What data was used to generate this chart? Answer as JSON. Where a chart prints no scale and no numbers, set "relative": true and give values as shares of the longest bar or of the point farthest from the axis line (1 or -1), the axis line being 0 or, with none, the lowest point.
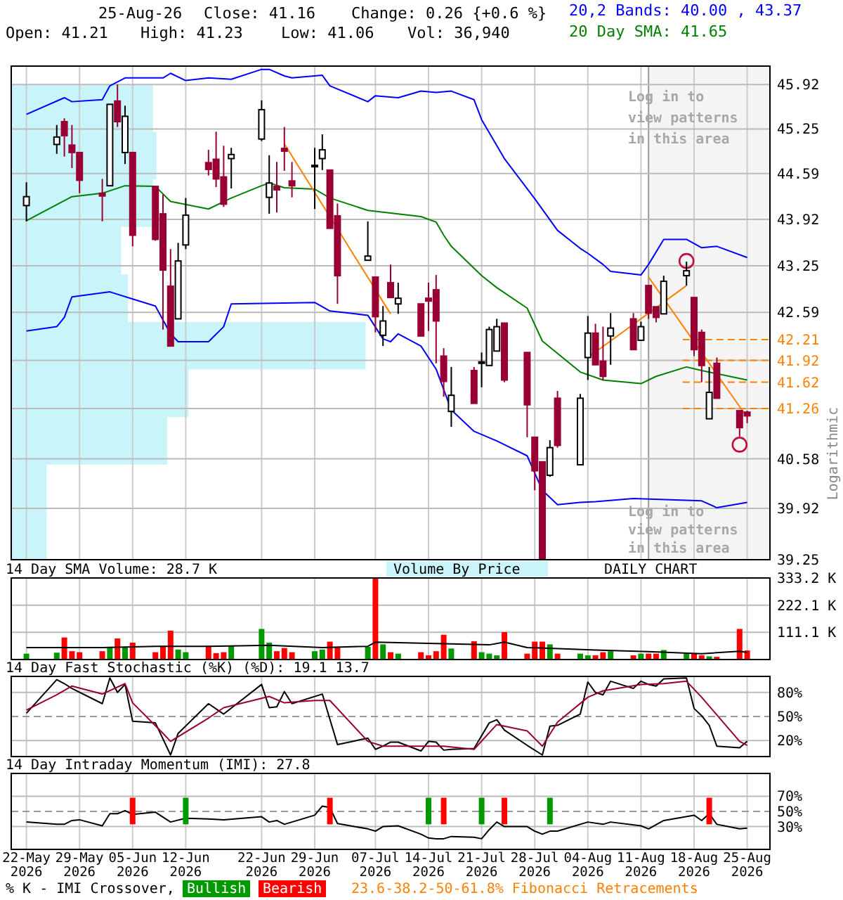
{
  "chart_data": [
    {
      "type": "candlestick",
      "log": true,
      "grid": true,
      "tick_labels": "y",
      "ylabel": "Logarithmic",
      "xlim": [
        "2026-05-20",
        "2026-08-28"
      ],
      "x": [
        "2026-05-22",
        "2026-05-26",
        "2026-05-27",
        "2026-05-28",
        "2026-05-29",
        "2026-06-01",
        "2026-06-02",
        "2026-06-03",
        "2026-06-04",
        "2026-06-05",
        "2026-06-08",
        "2026-06-09",
        "2026-06-10",
        "2026-06-11",
        "2026-06-12",
        "2026-06-15",
        "2026-06-16",
        "2026-06-17",
        "2026-06-18",
        "2026-06-22",
        "2026-06-23",
        "2026-06-24",
        "2026-06-25",
        "2026-06-26",
        "2026-06-29",
        "2026-06-30",
        "2026-07-01",
        "2026-07-02",
        "2026-07-06",
        "2026-07-07",
        "2026-07-08",
        "2026-07-09",
        "2026-07-10",
        "2026-07-13",
        "2026-07-14",
        "2026-07-15",
        "2026-07-16",
        "2026-07-17",
        "2026-07-20",
        "2026-07-21",
        "2026-07-22",
        "2026-07-23",
        "2026-07-24",
        "2026-07-27",
        "2026-07-28",
        "2026-07-29",
        "2026-07-30",
        "2026-07-31",
        "2026-08-03",
        "2026-08-04",
        "2026-08-05",
        "2026-08-06",
        "2026-08-07",
        "2026-08-10",
        "2026-08-11",
        "2026-08-12",
        "2026-08-13",
        "2026-08-14",
        "2026-08-17",
        "2026-08-18",
        "2026-08-19",
        "2026-08-20",
        "2026-08-21",
        "2026-08-24",
        "2026-08-25"
      ],
      "ohlc": [
        [
          44.12,
          44.46,
          43.89,
          44.25
        ],
        [
          45.02,
          45.31,
          44.88,
          45.13
        ],
        [
          45.36,
          45.41,
          44.84,
          45.15
        ],
        [
          45.01,
          45.31,
          44.67,
          44.9
        ],
        [
          44.9,
          44.9,
          44.3,
          44.49
        ],
        [
          44.3,
          44.51,
          43.89,
          44.26
        ],
        [
          44.41,
          45.62,
          44.41,
          45.62
        ],
        [
          45.67,
          45.92,
          45.28,
          45.36
        ],
        [
          44.9,
          45.6,
          44.73,
          45.44
        ],
        [
          44.9,
          44.9,
          43.53,
          43.69
        ],
        [
          44.4,
          44.4,
          43.61,
          43.63
        ],
        [
          44.0,
          44.28,
          42.35,
          43.19
        ],
        [
          42.96,
          43.49,
          42.12,
          42.12
        ],
        [
          42.5,
          43.58,
          42.5,
          43.32
        ],
        [
          43.55,
          44.23,
          43.49,
          43.98
        ],
        [
          44.75,
          44.94,
          44.56,
          44.65
        ],
        [
          44.8,
          45.21,
          44.39,
          44.51
        ],
        [
          44.54,
          45.0,
          44.1,
          44.14
        ],
        [
          44.81,
          44.97,
          44.37,
          44.87
        ],
        [
          45.1,
          45.68,
          45.07,
          45.54
        ],
        [
          44.24,
          44.86,
          44.0,
          44.45
        ],
        [
          44.4,
          44.76,
          44.02,
          44.35
        ],
        [
          44.96,
          45.28,
          44.63,
          44.92
        ],
        [
          44.48,
          44.76,
          44.24,
          44.41
        ],
        [
          44.7,
          44.97,
          44.07,
          44.71
        ],
        [
          44.81,
          45.17,
          44.64,
          44.94
        ],
        [
          44.64,
          44.64,
          43.79,
          43.79
        ],
        [
          43.97,
          44.15,
          42.71,
          43.11
        ],
        [
          43.33,
          43.89,
          43.33,
          43.39
        ],
        [
          43.09,
          43.09,
          42.31,
          42.53
        ],
        [
          42.27,
          42.68,
          42.12,
          42.47
        ],
        [
          43.01,
          43.27,
          42.8,
          42.8
        ],
        [
          42.71,
          43.01,
          42.57,
          42.79
        ],
        [
          42.71,
          42.71,
          42.26,
          42.26
        ],
        [
          42.79,
          43.01,
          42.33,
          42.75
        ],
        [
          42.91,
          43.12,
          41.88,
          42.47
        ],
        [
          41.98,
          42.09,
          41.42,
          41.63
        ],
        [
          41.22,
          41.83,
          41.01,
          41.44
        ],
        [
          41.78,
          41.83,
          41.33,
          41.33
        ],
        [
          41.88,
          42.03,
          41.55,
          41.9
        ],
        [
          41.85,
          42.39,
          41.85,
          42.35
        ],
        [
          42.05,
          42.5,
          42.05,
          42.39
        ],
        [
          42.44,
          42.44,
          41.62,
          41.65
        ],
        [
          42.03,
          42.03,
          40.87,
          41.31
        ],
        [
          40.87,
          40.87,
          40.16,
          40.42
        ],
        [
          40.54,
          40.54,
          39.25,
          39.25
        ],
        [
          40.36,
          40.83,
          40.34,
          40.73
        ],
        [
          41.4,
          41.5,
          40.73,
          40.76
        ],
        [
          40.5,
          41.46,
          40.5,
          41.4
        ],
        [
          41.96,
          42.54,
          41.65,
          42.3
        ],
        [
          42.3,
          42.43,
          41.86,
          41.86
        ],
        [
          41.91,
          42.39,
          41.65,
          41.7
        ],
        [
          42.26,
          42.58,
          41.86,
          42.37
        ],
        [
          42.5,
          42.58,
          42.07,
          42.07
        ],
        [
          42.2,
          42.46,
          42.2,
          42.39
        ],
        [
          42.97,
          42.97,
          42.5,
          42.58
        ],
        [
          42.67,
          42.67,
          42.45,
          42.52
        ],
        [
          42.57,
          43.11,
          42.57,
          43.03
        ],
        [
          43.11,
          43.31,
          42.97,
          43.18
        ],
        [
          42.8,
          42.8,
          41.98,
          42.07
        ],
        [
          42.31,
          42.35,
          41.62,
          41.85
        ],
        [
          41.12,
          41.83,
          41.12,
          41.48
        ],
        [
          41.88,
          41.96,
          41.4,
          41.4
        ],
        [
          41.23,
          41.23,
          40.88,
          41.0
        ],
        [
          41.21,
          41.23,
          41.06,
          41.16
        ]
      ],
      "series": [
        {
          "type": "line",
          "color": "#0000ff",
          "x": [
            "2026-05-22",
            "2026-05-27",
            "2026-05-28",
            "2026-06-01",
            "2026-06-02",
            "2026-06-04",
            "2026-06-09",
            "2026-06-10",
            "2026-06-12",
            "2026-06-15",
            "2026-06-18",
            "2026-06-22",
            "2026-06-23",
            "2026-06-25",
            "2026-06-26",
            "2026-06-30",
            "2026-07-01",
            "2026-07-06",
            "2026-07-07",
            "2026-07-10",
            "2026-07-13",
            "2026-07-15",
            "2026-07-17",
            "2026-07-20",
            "2026-07-21",
            "2026-07-24",
            "2026-07-28",
            "2026-07-31",
            "2026-08-03",
            "2026-08-04",
            "2026-08-06",
            "2026-08-07",
            "2026-08-11",
            "2026-08-12",
            "2026-08-14",
            "2026-08-17",
            "2026-08-19",
            "2026-08-21",
            "2026-08-25"
          ],
          "values": [
            45.47,
            45.72,
            45.66,
            45.69,
            45.9,
            46.02,
            46.02,
            46.09,
            45.98,
            46.02,
            46.0,
            46.15,
            46.15,
            46.05,
            46.02,
            46.06,
            45.9,
            45.66,
            45.75,
            45.72,
            45.82,
            45.8,
            45.82,
            45.69,
            45.39,
            44.81,
            44.22,
            43.76,
            43.5,
            43.43,
            43.27,
            43.17,
            43.12,
            43.27,
            43.63,
            43.63,
            43.51,
            43.53,
            43.37
          ]
        },
        {
          "type": "line",
          "color": "#0000ff",
          "x": [
            "2026-05-22",
            "2026-05-26",
            "2026-05-27",
            "2026-05-28",
            "2026-06-02",
            "2026-06-05",
            "2026-06-08",
            "2026-06-10",
            "2026-06-11",
            "2026-06-15",
            "2026-06-17",
            "2026-06-18",
            "2026-06-29",
            "2026-07-01",
            "2026-07-06",
            "2026-07-08",
            "2026-07-09",
            "2026-07-10",
            "2026-07-13",
            "2026-07-15",
            "2026-07-17",
            "2026-07-20",
            "2026-07-23",
            "2026-07-27",
            "2026-07-29",
            "2026-07-31",
            "2026-08-03",
            "2026-08-05",
            "2026-08-10",
            "2026-08-19",
            "2026-08-21",
            "2026-08-25"
          ],
          "values": [
            42.33,
            42.39,
            42.52,
            42.81,
            42.88,
            42.78,
            42.68,
            42.29,
            42.18,
            42.18,
            42.39,
            42.71,
            42.73,
            42.61,
            42.55,
            42.22,
            42.18,
            42.29,
            42.12,
            41.8,
            41.24,
            40.95,
            40.82,
            40.62,
            40.16,
            39.97,
            40.0,
            40.01,
            40.05,
            40.02,
            39.93,
            40.0
          ]
        },
        {
          "type": "line",
          "color": "#008000",
          "x": [
            "2026-05-22",
            "2026-05-28",
            "2026-06-01",
            "2026-06-04",
            "2026-06-08",
            "2026-06-10",
            "2026-06-15",
            "2026-06-18",
            "2026-06-22",
            "2026-06-23",
            "2026-06-25",
            "2026-06-29",
            "2026-07-01",
            "2026-07-06",
            "2026-07-09",
            "2026-07-13",
            "2026-07-15",
            "2026-07-16",
            "2026-07-17",
            "2026-07-21",
            "2026-07-23",
            "2026-07-27",
            "2026-07-29",
            "2026-08-03",
            "2026-08-06",
            "2026-08-11",
            "2026-08-13",
            "2026-08-17",
            "2026-08-19",
            "2026-08-25"
          ],
          "values": [
            43.9,
            44.25,
            44.3,
            44.41,
            44.4,
            44.18,
            44.07,
            44.23,
            44.41,
            44.45,
            44.38,
            44.36,
            44.23,
            44.05,
            44.01,
            43.96,
            43.88,
            43.69,
            43.53,
            43.11,
            42.94,
            42.65,
            42.19,
            41.76,
            41.65,
            41.6,
            41.7,
            41.83,
            41.78,
            41.65
          ]
        },
        {
          "type": "line",
          "color": "#ff8000",
          "x": [
            "2026-06-25",
            "2026-07-09"
          ],
          "values": [
            45.03,
            42.57
          ]
        },
        {
          "type": "line",
          "color": "#ff8000",
          "x": [
            "2026-08-04",
            "2026-08-17"
          ],
          "values": [
            41.96,
            42.97
          ]
        },
        {
          "type": "line",
          "color": "#ff8000",
          "x": [
            "2026-08-12",
            "2026-08-25"
          ],
          "values": [
            43.09,
            41.14
          ]
        },
        {
          "type": "scatter",
          "marker": "circle",
          "color": "#c0103a",
          "x": [
            "2026-08-17",
            "2026-08-24"
          ],
          "values": [
            43.32,
            40.77
          ]
        }
      ],
      "ylim": [
        39.25,
        46.2
      ],
      "yticks": [
        45.92,
        45.25,
        44.59,
        43.92,
        43.25,
        42.59,
        {
          "value": 41.92,
          "label": null
        },
        {
          "value": 41.26,
          "label": null
        },
        40.58,
        39.92,
        39.25
      ],
      "xticks": [
        "2026-05-22",
        "2026-05-29",
        "2026-06-05",
        "2026-06-12",
        "2026-06-22",
        "2026-06-29",
        "2026-07-07",
        "2026-07-14",
        "2026-07-21",
        "2026-07-28",
        "2026-08-04",
        "2026-08-11",
        "2026-08-18",
        "2026-08-25"
      ],
      "ref_lines": [
        {
          "axis": "y",
          "value": 42.21,
          "label": "42.21",
          "color": "#ff8000",
          "line_style": "dashed"
        },
        {
          "axis": "y",
          "value": 41.92,
          "label": "41.92",
          "color": "#ff8000",
          "line_style": "dashed"
        },
        {
          "axis": "y",
          "value": 41.62,
          "label": "41.62",
          "color": "#ff8000",
          "line_style": "dashed"
        },
        {
          "axis": "y",
          "value": 41.26,
          "label": "41.26",
          "color": "#ff8000",
          "line_style": "dashed"
        }
      ],
      "bands": [
        {
          "axis": "x",
          "from": "2026-08-12",
          "to": "2026-08-28",
          "color": "#f4f4f4"
        }
      ],
      "annotations": [
        "25-Aug-26",
        "Close: 41.16",
        "Change: 0.26 {+0.6 %}",
        "Open: 41.21",
        "High: 41.23",
        "Low: 41.06",
        "Vol: 36,940",
        "20,2 Bands: 40.00 , 43.37",
        "20 Day SMA: 41.65",
        "Log in to view patterns in this area",
        "Log in to view patterns in this area",
        "23.6-38.2-50-61.8% Fibonacci Retracements"
      ]
    },
    {
      "type": "bar",
      "orientation": "horizontal",
      "relative": true,
      "categories": [
        null,
        null,
        null,
        null,
        null,
        null,
        null,
        null,
        null,
        null
      ],
      "values": [
        0.4,
        0.41,
        0.4,
        0.31,
        0.33,
        1,
        0.5,
        0.44,
        0.1,
        0.1
      ],
      "color": "#c8f4fa"
    },
    {
      "type": "bar",
      "title": "14 Day SMA Volume: 28.7 K",
      "grid": true,
      "tick_labels": "y",
      "xlim": [
        "2026-05-20",
        "2026-08-28"
      ],
      "x": [
        "2026-05-22",
        "2026-05-26",
        "2026-05-27",
        "2026-05-28",
        "2026-05-29",
        "2026-06-01",
        "2026-06-02",
        "2026-06-03",
        "2026-06-04",
        "2026-06-05",
        "2026-06-08",
        "2026-06-09",
        "2026-06-10",
        "2026-06-11",
        "2026-06-12",
        "2026-06-15",
        "2026-06-16",
        "2026-06-17",
        "2026-06-18",
        "2026-06-22",
        "2026-06-23",
        "2026-06-24",
        "2026-06-25",
        "2026-06-26",
        "2026-06-29",
        "2026-06-30",
        "2026-07-01",
        "2026-07-02",
        "2026-07-06",
        "2026-07-07",
        "2026-07-08",
        "2026-07-09",
        "2026-07-10",
        "2026-07-13",
        "2026-07-14",
        "2026-07-15",
        "2026-07-16",
        "2026-07-17",
        "2026-07-20",
        "2026-07-21",
        "2026-07-22",
        "2026-07-23",
        "2026-07-24",
        "2026-07-27",
        "2026-07-28",
        "2026-07-29",
        "2026-07-30",
        "2026-07-31",
        "2026-08-03",
        "2026-08-04",
        "2026-08-05",
        "2026-08-06",
        "2026-08-07",
        "2026-08-10",
        "2026-08-11",
        "2026-08-12",
        "2026-08-13",
        "2026-08-14",
        "2026-08-17",
        "2026-08-18",
        "2026-08-19",
        "2026-08-20",
        "2026-08-21",
        "2026-08-24",
        "2026-08-25"
      ],
      "series": [
        {
          "type": "bar",
          "values": [
            24,
            28,
            90,
            34,
            30,
            34,
            52,
            86,
            49,
            69,
            30,
            56,
            118,
            41,
            30,
            56,
            26,
            30,
            56,
            125,
            69,
            34,
            47,
            30,
            34,
            41,
            73,
            52,
            52,
            333,
            62,
            30,
            24,
            30,
            17,
            34,
            101,
            45,
            75,
            30,
            24,
            17,
            112,
            24,
            73,
            73,
            62,
            24,
            24,
            17,
            17,
            30,
            34,
            17,
            24,
            24,
            24,
            39,
            26,
            24,
            17,
            13,
            11,
            125,
            37
          ],
          "colors": [
            "#009900",
            "#009900",
            "#ff0000",
            "#ff0000",
            "#ff0000",
            "#ff0000",
            "#009900",
            "#ff0000",
            "#009900",
            "#ff0000",
            "#ff0000",
            "#ff0000",
            "#ff0000",
            "#009900",
            "#009900",
            "#ff0000",
            "#ff0000",
            "#ff0000",
            "#009900",
            "#009900",
            "#009900",
            "#ff0000",
            "#ff0000",
            "#ff0000",
            "#009900",
            "#009900",
            "#ff0000",
            "#ff0000",
            "#009900",
            "#ff0000",
            "#009900",
            "#ff0000",
            "#009900",
            "#ff0000",
            "#ff0000",
            "#ff0000",
            "#ff0000",
            "#009900",
            "#ff0000",
            "#009900",
            "#009900",
            "#009900",
            "#ff0000",
            "#ff0000",
            "#ff0000",
            "#ff0000",
            "#009900",
            "#ff0000",
            "#009900",
            "#009900",
            "#ff0000",
            "#ff0000",
            "#009900",
            "#ff0000",
            "#009900",
            "#ff0000",
            "#ff0000",
            "#009900",
            "#009900",
            "#ff0000",
            "#ff0000",
            "#009900",
            "#ff0000",
            "#ff0000",
            "#ff0000"
          ]
        },
        {
          "type": "line",
          "color": "#000000",
          "x": [
            "2026-05-22",
            "2026-06-01",
            "2026-06-08",
            "2026-06-15",
            "2026-06-23",
            "2026-06-30",
            "2026-07-06",
            "2026-07-07",
            "2026-07-15",
            "2026-07-22",
            "2026-07-24",
            "2026-07-27",
            "2026-08-05",
            "2026-08-12",
            "2026-08-19",
            "2026-08-24",
            "2026-08-25"
          ],
          "values": [
            49,
            49,
            54,
            54,
            58,
            49,
            54,
            71,
            65,
            60,
            71,
            49,
            39,
            32,
            24,
            34,
            29
          ]
        }
      ],
      "ylim": [
        0,
        333.2
      ],
      "yticks": [
        {
          "value": 333.2,
          "label": "333.2 K"
        },
        {
          "value": 222.1,
          "label": "222.1 K"
        },
        {
          "value": 111.1,
          "label": "111.1 K"
        }
      ],
      "xticks": [
        "2026-05-22",
        "2026-05-29",
        "2026-06-05",
        "2026-06-12",
        "2026-06-22",
        "2026-06-29",
        "2026-07-07",
        "2026-07-14",
        "2026-07-21",
        "2026-07-28",
        "2026-08-04",
        "2026-08-11",
        "2026-08-18",
        "2026-08-25"
      ],
      "annotations": [
        "Volume By Price",
        "DAILY CHART"
      ]
    },
    {
      "type": "line",
      "title": "14 Day Fast Stochastic (%K) (%D): 19.1   13.7",
      "grid": true,
      "tick_labels": "y",
      "xlim": [
        "2026-05-20",
        "2026-08-28"
      ],
      "series": [
        {
          "color": "#000000",
          "x": [
            "2026-05-22",
            "2026-05-26",
            "2026-05-27",
            "2026-05-28",
            "2026-06-01",
            "2026-06-02",
            "2026-06-03",
            "2026-06-04",
            "2026-06-05",
            "2026-06-08",
            "2026-06-10",
            "2026-06-11",
            "2026-06-15",
            "2026-06-17",
            "2026-06-22",
            "2026-06-23",
            "2026-06-24",
            "2026-06-25",
            "2026-06-26",
            "2026-06-30",
            "2026-07-02",
            "2026-07-06",
            "2026-07-07",
            "2026-07-08",
            "2026-07-09",
            "2026-07-10",
            "2026-07-13",
            "2026-07-14",
            "2026-07-15",
            "2026-07-16",
            "2026-07-17",
            "2026-07-20",
            "2026-07-22",
            "2026-07-23",
            "2026-07-24",
            "2026-07-27",
            "2026-07-29",
            "2026-07-30",
            "2026-07-31",
            "2026-08-03",
            "2026-08-04",
            "2026-08-05",
            "2026-08-06",
            "2026-08-07",
            "2026-08-10",
            "2026-08-11",
            "2026-08-12",
            "2026-08-13",
            "2026-08-14",
            "2026-08-17",
            "2026-08-18",
            "2026-08-19",
            "2026-08-20",
            "2026-08-21",
            "2026-08-24",
            "2026-08-25"
          ],
          "values": [
            54,
            96,
            91,
            85,
            66,
            98,
            80,
            90,
            44,
            42,
            2,
            29,
            66,
            53,
            90,
            61,
            62,
            81,
            66,
            78,
            15,
            23,
            9,
            13,
            18,
            18,
            7,
            19,
            18,
            8,
            9,
            10,
            42,
            46,
            33,
            14,
            2,
            38,
            39,
            53,
            93,
            80,
            77,
            94,
            85,
            94,
            90,
            88,
            97,
            98,
            60,
            51,
            39,
            13,
            11,
            19
          ]
        },
        {
          "color": "#990033",
          "x": [
            "2026-05-22",
            "2026-05-26",
            "2026-05-28",
            "2026-06-01",
            "2026-06-04",
            "2026-06-05",
            "2026-06-09",
            "2026-06-10",
            "2026-06-15",
            "2026-06-17",
            "2026-06-23",
            "2026-06-25",
            "2026-06-29",
            "2026-07-01",
            "2026-07-06",
            "2026-07-08",
            "2026-07-14",
            "2026-07-16",
            "2026-07-20",
            "2026-07-23",
            "2026-07-27",
            "2026-07-29",
            "2026-07-31",
            "2026-08-04",
            "2026-08-06",
            "2026-08-11",
            "2026-08-14",
            "2026-08-17",
            "2026-08-19",
            "2026-08-24",
            "2026-08-25"
          ],
          "values": [
            58,
            77,
            88,
            78,
            91,
            67,
            29,
            19,
            48,
            61,
            75,
            67,
            70,
            70,
            19,
            13,
            13,
            13,
            9,
            40,
            32,
            13,
            43,
            74,
            82,
            90,
            91,
            94,
            74,
            19,
            14
          ]
        }
      ],
      "ylim": [
        0,
        100
      ],
      "yticks": [
        {
          "value": 20,
          "label": "20%"
        },
        {
          "value": 50,
          "label": "50%"
        },
        {
          "value": 80,
          "label": "80%"
        }
      ],
      "xticks": [
        "2026-05-22",
        "2026-05-29",
        "2026-06-05",
        "2026-06-12",
        "2026-06-22",
        "2026-06-29",
        "2026-07-07",
        "2026-07-14",
        "2026-07-21",
        "2026-07-28",
        "2026-08-04",
        "2026-08-11",
        "2026-08-18",
        "2026-08-25"
      ],
      "ref_lines": [
        {
          "axis": "y",
          "value": 50,
          "color": "#999999",
          "line_style": "dashed"
        }
      ]
    },
    {
      "type": "line",
      "title": "14 Day Intraday Momentum (IMI): 27.8",
      "grid": true,
      "legend": "bottom",
      "legend_title": "% K - IMI Crossover,",
      "xlim": [
        "2026-05-20",
        "2026-08-28"
      ],
      "series": [
        {
          "type": "line",
          "color": "#000000",
          "x": [
            "2026-05-22",
            "2026-05-26",
            "2026-05-27",
            "2026-05-28",
            "2026-05-29",
            "2026-06-01",
            "2026-06-02",
            "2026-06-03",
            "2026-06-04",
            "2026-06-05",
            "2026-06-08",
            "2026-06-10",
            "2026-06-12",
            "2026-06-15",
            "2026-06-17",
            "2026-06-22",
            "2026-06-23",
            "2026-06-24",
            "2026-06-25",
            "2026-06-29",
            "2026-06-30",
            "2026-07-01",
            "2026-07-02",
            "2026-07-06",
            "2026-07-07",
            "2026-07-08",
            "2026-07-10",
            "2026-07-13",
            "2026-07-14",
            "2026-07-15",
            "2026-07-16",
            "2026-07-17",
            "2026-07-20",
            "2026-07-21",
            "2026-07-22",
            "2026-07-23",
            "2026-07-24",
            "2026-07-27",
            "2026-07-28",
            "2026-07-29",
            "2026-07-30",
            "2026-07-31",
            "2026-08-04",
            "2026-08-06",
            "2026-08-07",
            "2026-08-11",
            "2026-08-12",
            "2026-08-14",
            "2026-08-18",
            "2026-08-19",
            "2026-08-20",
            "2026-08-21",
            "2026-08-24",
            "2026-08-25"
          ],
          "values": [
            36,
            33,
            33,
            38,
            39,
            31,
            47,
            47,
            51,
            46,
            49,
            36,
            41,
            40,
            39,
            43,
            36,
            38,
            33,
            45,
            57,
            55,
            34,
            27,
            24,
            30,
            31,
            20,
            15,
            14,
            14,
            17,
            16,
            14,
            26,
            36,
            30,
            30,
            24,
            20,
            24,
            24,
            36,
            33,
            36,
            31,
            27,
            38,
            45,
            38,
            47,
            33,
            27,
            28
          ]
        },
        {
          "type": "bar",
          "name": "Bullish",
          "color": "#009900",
          "x": [
            "2026-06-12",
            "2026-07-14",
            "2026-07-21",
            "2026-07-30"
          ],
          "base": [
            33,
            33,
            33,
            33
          ],
          "values": [
            35,
            35,
            35,
            35
          ]
        },
        {
          "type": "bar",
          "name": "Bearish",
          "color": "#ff0000",
          "x": [
            "2026-06-05",
            "2026-07-01",
            "2026-07-16",
            "2026-07-24",
            "2026-08-20"
          ],
          "base": [
            33,
            33,
            33,
            33,
            33
          ],
          "values": [
            35,
            35,
            35,
            35,
            35
          ]
        }
      ],
      "ylim": [
        0,
        100
      ],
      "yticks": [
        {
          "value": 30,
          "label": "30%"
        },
        {
          "value": 50,
          "label": "50%"
        },
        {
          "value": 70,
          "label": "70%"
        }
      ],
      "xticks": [
        {
          "value": "2026-05-22",
          "label": "22-May\n2026"
        },
        {
          "value": "2026-05-29",
          "label": "29-May\n2026"
        },
        {
          "value": "2026-06-05",
          "label": "05-Jun\n2026"
        },
        {
          "value": "2026-06-12",
          "label": "12-Jun\n2026"
        },
        {
          "value": "2026-06-22",
          "label": "22-Jun\n2026"
        },
        {
          "value": "2026-06-29",
          "label": "29-Jun\n2026"
        },
        {
          "value": "2026-07-07",
          "label": "07-Jul\n2026"
        },
        {
          "value": "2026-07-14",
          "label": "14-Jul\n2026"
        },
        {
          "value": "2026-07-21",
          "label": "21-Jul\n2026"
        },
        {
          "value": "2026-07-28",
          "label": "28-Jul\n2026"
        },
        {
          "value": "2026-08-04",
          "label": "04-Aug\n2026"
        },
        {
          "value": "2026-08-11",
          "label": "11-Aug\n2026"
        },
        {
          "value": "2026-08-18",
          "label": "18-Aug\n2026"
        },
        {
          "value": "2026-08-25",
          "label": "25-Aug\n2026"
        }
      ],
      "ref_lines": [
        {
          "axis": "y",
          "value": 50,
          "color": "#999999",
          "line_style": "dashed"
        }
      ]
    }
  ]
}
